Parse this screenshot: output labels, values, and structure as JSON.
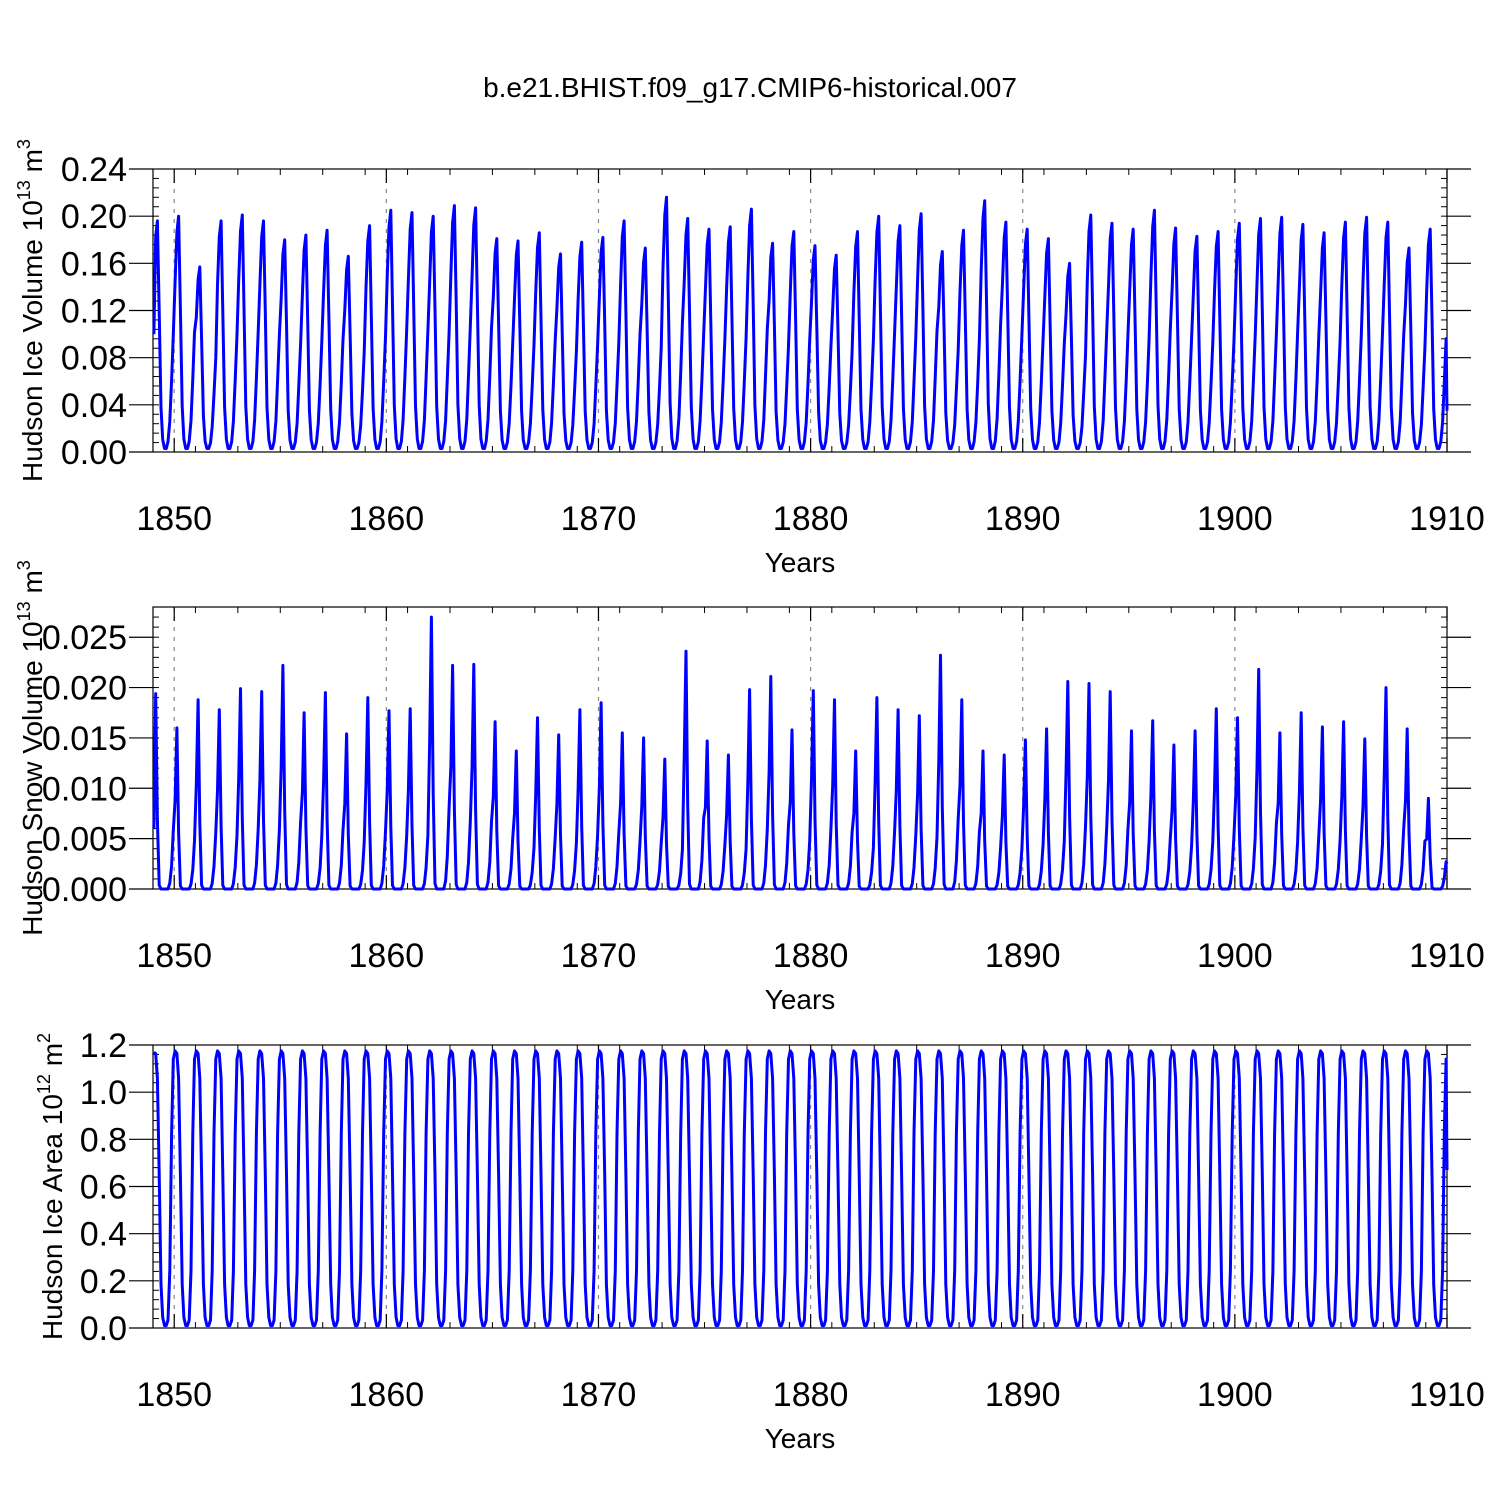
{
  "title": "b.e21.BHIST.f09_g17.CMIP6-historical.007",
  "chart_data": [
    {
      "type": "line",
      "id": "ice-volume",
      "ylabel": "Hudson Ice Volume 10",
      "ylabel_sup": "13",
      "ylabel_unit": " m",
      "ylabel_unit_sup": "3",
      "xlabel": "Years",
      "xlim": [
        1849,
        1910
      ],
      "ylim": [
        0,
        0.24
      ],
      "xticks": [
        1850,
        1860,
        1870,
        1880,
        1890,
        1900,
        1910
      ],
      "xtick_labels": [
        "1850",
        "1860",
        "1870",
        "1880",
        "1890",
        "1900",
        "1910"
      ],
      "yticks": [
        0,
        0.04,
        0.08,
        0.12,
        0.16,
        0.2,
        0.24
      ],
      "ytick_labels": [
        "0.00",
        "0.04",
        "0.08",
        "0.12",
        "0.16",
        "0.20",
        "0.24"
      ],
      "grid_x": true,
      "color": "#0000ff",
      "series_name": "Hudson Ice Volume",
      "annual_peaks": [
        0.196,
        0.2,
        0.157,
        0.196,
        0.201,
        0.196,
        0.18,
        0.184,
        0.188,
        0.166,
        0.192,
        0.205,
        0.203,
        0.2,
        0.209,
        0.207,
        0.181,
        0.179,
        0.186,
        0.168,
        0.178,
        0.182,
        0.196,
        0.173,
        0.216,
        0.198,
        0.189,
        0.191,
        0.206,
        0.177,
        0.187,
        0.175,
        0.167,
        0.187,
        0.2,
        0.192,
        0.202,
        0.17,
        0.188,
        0.213,
        0.195,
        0.189,
        0.181,
        0.16,
        0.201,
        0.194,
        0.189,
        0.205,
        0.19,
        0.183,
        0.187,
        0.194,
        0.198,
        0.199,
        0.193,
        0.186,
        0.195,
        0.199,
        0.195,
        0.173,
        0.189
      ],
      "annual_min": 0.003,
      "start_value": 0.1,
      "end_value": 0.035
    },
    {
      "type": "line",
      "id": "snow-volume",
      "ylabel": "Hudson Snow Volume 10",
      "ylabel_sup": "13",
      "ylabel_unit": " m",
      "ylabel_unit_sup": "3",
      "xlabel": "Years",
      "xlim": [
        1849,
        1910
      ],
      "ylim": [
        0,
        0.028
      ],
      "xticks": [
        1850,
        1860,
        1870,
        1880,
        1890,
        1900,
        1910
      ],
      "xtick_labels": [
        "1850",
        "1860",
        "1870",
        "1880",
        "1890",
        "1900",
        "1910"
      ],
      "yticks": [
        0,
        0.005,
        0.01,
        0.015,
        0.02,
        0.025
      ],
      "ytick_labels": [
        "0.000",
        "0.005",
        "0.010",
        "0.015",
        "0.020",
        "0.025"
      ],
      "grid_x": true,
      "color": "#0000ff",
      "series_name": "Hudson Snow Volume",
      "annual_peaks": [
        0.0194,
        0.016,
        0.0188,
        0.0178,
        0.0199,
        0.0196,
        0.0222,
        0.0175,
        0.0195,
        0.0154,
        0.019,
        0.0177,
        0.0179,
        0.027,
        0.0222,
        0.0223,
        0.0166,
        0.0137,
        0.017,
        0.0153,
        0.0178,
        0.0185,
        0.0155,
        0.015,
        0.0129,
        0.0236,
        0.0147,
        0.0133,
        0.0198,
        0.0211,
        0.0158,
        0.0197,
        0.0188,
        0.0137,
        0.019,
        0.0178,
        0.0172,
        0.0232,
        0.0188,
        0.0137,
        0.0133,
        0.0148,
        0.0159,
        0.0206,
        0.0204,
        0.0196,
        0.0157,
        0.0167,
        0.0143,
        0.0157,
        0.0179,
        0.017,
        0.0218,
        0.0155,
        0.0175,
        0.0161,
        0.0166,
        0.0149,
        0.02,
        0.0159,
        0.009
      ],
      "annual_min": 0.0,
      "start_value": 0.006,
      "end_value": 0.0025
    },
    {
      "type": "line",
      "id": "ice-area",
      "ylabel": "Hudson Ice Area 10",
      "ylabel_sup": "12",
      "ylabel_unit": " m",
      "ylabel_unit_sup": "2",
      "xlabel": "Years",
      "xlim": [
        1849,
        1910
      ],
      "ylim": [
        0,
        1.2
      ],
      "xticks": [
        1850,
        1860,
        1870,
        1880,
        1890,
        1900,
        1910
      ],
      "xtick_labels": [
        "1850",
        "1860",
        "1870",
        "1880",
        "1890",
        "1900",
        "1910"
      ],
      "yticks": [
        0,
        0.2,
        0.4,
        0.6,
        0.8,
        1.0,
        1.2
      ],
      "ytick_labels": [
        "0.0",
        "0.2",
        "0.4",
        "0.6",
        "0.8",
        "1.0",
        "1.2"
      ],
      "grid_x": true,
      "color": "#0000ff",
      "series_name": "Hudson Ice Area",
      "annual_peaks": [
        1.175
      ],
      "annual_min": 0.01,
      "start_value": 1.17,
      "end_value": 0.67
    }
  ]
}
